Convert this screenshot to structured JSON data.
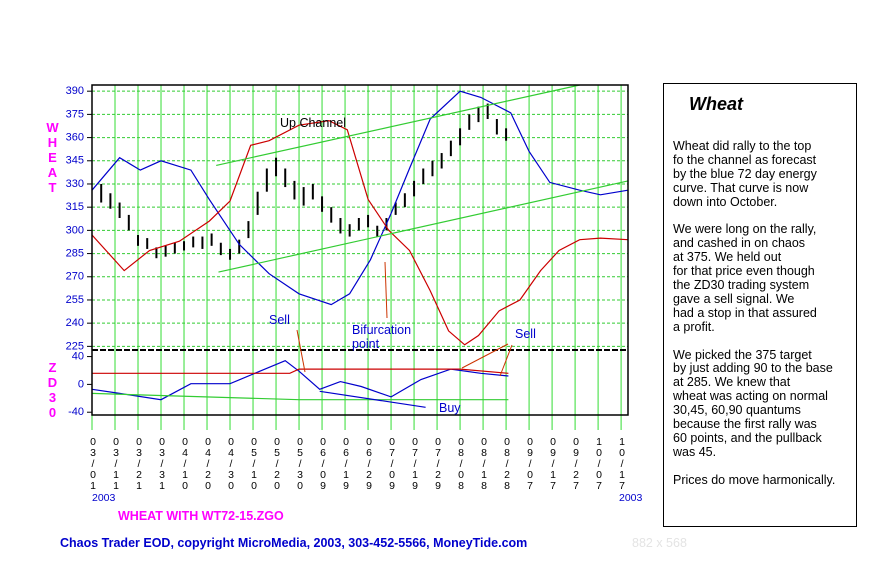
{
  "chart_data": [
    {
      "type": "combo",
      "ylabel": "WHEAT",
      "xlim": [
        "2003-03-01",
        "2003-10-20"
      ],
      "xticks": [
        {
          "value": "2003-03-01",
          "label": "03/01"
        },
        {
          "value": "2003-03-11",
          "label": "03/11"
        },
        {
          "value": "2003-03-21",
          "label": "03/21"
        },
        {
          "value": "2003-03-31",
          "label": "03/31"
        },
        {
          "value": "2003-04-10",
          "label": "04/10"
        },
        {
          "value": "2003-04-20",
          "label": "04/20"
        },
        {
          "value": "2003-04-30",
          "label": "04/30"
        },
        {
          "value": "2003-05-10",
          "label": "05/10"
        },
        {
          "value": "2003-05-20",
          "label": "05/20"
        },
        {
          "value": "2003-05-30",
          "label": "05/30"
        },
        {
          "value": "2003-06-09",
          "label": "06/09"
        },
        {
          "value": "2003-06-19",
          "label": "06/19"
        },
        {
          "value": "2003-06-29",
          "label": "06/29"
        },
        {
          "value": "2003-07-09",
          "label": "07/09"
        },
        {
          "value": "2003-07-19",
          "label": "07/19"
        },
        {
          "value": "2003-07-29",
          "label": "07/29"
        },
        {
          "value": "2003-08-08",
          "label": "08/08"
        },
        {
          "value": "2003-08-18",
          "label": "08/18"
        },
        {
          "value": "2003-08-28",
          "label": "08/28"
        },
        {
          "value": "2003-09-07",
          "label": "09/07"
        },
        {
          "value": "2003-09-17",
          "label": "09/17"
        },
        {
          "value": "2003-09-27",
          "label": "09/27"
        },
        {
          "value": "2003-10-07",
          "label": "10/07"
        },
        {
          "value": "2003-10-17",
          "label": "10/17"
        }
      ],
      "x_year_labels": [
        "2003",
        "2003"
      ],
      "ylim": [
        222,
        394
      ],
      "yticks": [
        390,
        375,
        360,
        345,
        330,
        315,
        300,
        285,
        270,
        255,
        240,
        225
      ],
      "grid": true,
      "annotations": [
        "Up Channel",
        "Sell",
        "Bifurcation point"
      ],
      "series": [
        {
          "type": "range",
          "color": "#000000",
          "x": [
            "2003-03-05",
            "2003-03-09",
            "2003-03-13",
            "2003-03-17",
            "2003-03-21",
            "2003-03-25",
            "2003-03-29",
            "2003-04-02",
            "2003-04-06",
            "2003-04-10",
            "2003-04-14",
            "2003-04-18",
            "2003-04-22",
            "2003-04-26",
            "2003-04-30",
            "2003-05-04",
            "2003-05-08",
            "2003-05-12",
            "2003-05-16",
            "2003-05-20",
            "2003-05-24",
            "2003-05-28",
            "2003-06-01",
            "2003-06-05",
            "2003-06-09",
            "2003-06-13",
            "2003-06-17",
            "2003-06-21",
            "2003-06-25",
            "2003-06-29",
            "2003-07-03",
            "2003-07-07",
            "2003-07-11",
            "2003-07-15",
            "2003-07-19",
            "2003-07-23",
            "2003-07-27",
            "2003-07-31",
            "2003-08-04",
            "2003-08-08",
            "2003-08-12",
            "2003-08-16",
            "2003-08-20",
            "2003-08-24",
            "2003-08-28"
          ],
          "high": [
            330,
            324,
            318,
            310,
            297,
            295,
            289,
            290,
            292,
            293,
            296,
            296,
            298,
            292,
            288,
            294,
            306,
            325,
            340,
            347,
            340,
            332,
            328,
            330,
            322,
            315,
            308,
            304,
            308,
            310,
            303,
            308,
            318,
            324,
            332,
            340,
            345,
            350,
            358,
            366,
            375,
            380,
            382,
            372,
            366
          ],
          "low": [
            318,
            314,
            308,
            300,
            290,
            288,
            282,
            283,
            285,
            287,
            289,
            288,
            290,
            284,
            281,
            285,
            295,
            310,
            325,
            335,
            328,
            320,
            316,
            320,
            312,
            305,
            298,
            296,
            300,
            302,
            296,
            300,
            310,
            315,
            322,
            330,
            335,
            340,
            348,
            355,
            365,
            370,
            372,
            362,
            358
          ]
        },
        {
          "type": "line",
          "color": "#0000cc",
          "x": [
            "2003-03-01",
            "2003-03-13",
            "2003-03-22",
            "2003-03-31",
            "2003-04-13",
            "2003-04-21",
            "2003-05-04",
            "2003-05-17",
            "2003-05-30",
            "2003-06-13",
            "2003-06-21",
            "2003-06-30",
            "2003-07-09",
            "2003-07-17",
            "2003-07-26",
            "2003-08-08",
            "2003-08-17",
            "2003-08-30",
            "2003-09-07",
            "2003-09-16",
            "2003-09-29",
            "2003-10-08",
            "2003-10-20"
          ],
          "values": [
            326,
            347,
            339,
            345,
            339,
            320,
            291,
            272,
            259,
            252,
            259,
            281,
            311,
            340,
            372,
            390,
            386,
            376,
            351,
            331,
            326,
            323,
            326
          ]
        },
        {
          "type": "line",
          "color": "#cc0000",
          "x": [
            "2003-03-01",
            "2003-03-15",
            "2003-03-26",
            "2003-04-08",
            "2003-04-21",
            "2003-04-30",
            "2003-05-09",
            "2003-05-17",
            "2003-05-30",
            "2003-06-12",
            "2003-06-20",
            "2003-06-29",
            "2003-07-08",
            "2003-07-17",
            "2003-07-26",
            "2003-08-03",
            "2003-08-10",
            "2003-08-16",
            "2003-08-25",
            "2003-09-03",
            "2003-09-12",
            "2003-09-20",
            "2003-09-29",
            "2003-10-08",
            "2003-10-20"
          ],
          "values": [
            297,
            274,
            287,
            293,
            306,
            319,
            355,
            358,
            368,
            371,
            365,
            320,
            300,
            287,
            261,
            235,
            226,
            232,
            248,
            255,
            274,
            287,
            294,
            295,
            294
          ]
        },
        {
          "type": "line",
          "color": "#33cc33",
          "x": [
            "2003-04-24",
            "2003-09-29"
          ],
          "values": [
            342,
            394
          ]
        },
        {
          "type": "line",
          "color": "#33cc33",
          "x": [
            "2003-04-25",
            "2003-10-20"
          ],
          "values": [
            273,
            332
          ]
        }
      ]
    },
    {
      "type": "combo",
      "ylabel": "ZD30",
      "xlim": [
        "2003-03-01",
        "2003-10-20"
      ],
      "ylim": [
        -44,
        48
      ],
      "yticks": [
        40,
        0,
        -40
      ],
      "annotations": [
        "Buy",
        "Sell"
      ],
      "series": [
        {
          "type": "line",
          "color": "#0000cc",
          "x": [
            "2003-03-01",
            "2003-03-13",
            "2003-03-31",
            "2003-04-13",
            "2003-04-30",
            "2003-05-13",
            "2003-05-24",
            "2003-05-30",
            "2003-06-08",
            "2003-06-17",
            "2003-06-26",
            "2003-07-09",
            "2003-07-22",
            "2003-08-04",
            "2003-08-17",
            "2003-08-29"
          ],
          "values": [
            -7,
            -13,
            -22,
            1,
            1,
            19,
            34,
            19,
            -7,
            4,
            -3,
            -18,
            7,
            22,
            16,
            12
          ]
        },
        {
          "type": "line",
          "color": "#cc0000",
          "x": [
            "2003-03-01",
            "2003-05-26",
            "2003-05-30",
            "2003-08-08",
            "2003-08-29"
          ],
          "values": [
            16,
            16,
            22,
            22,
            16
          ]
        },
        {
          "type": "line",
          "color": "#33cc33",
          "x": [
            "2003-03-01",
            "2003-05-30",
            "2003-08-29"
          ],
          "values": [
            -13,
            -22,
            -22
          ]
        },
        {
          "type": "line",
          "color": "#0000cc",
          "x": [
            "2003-06-08",
            "2003-07-24"
          ],
          "values": [
            -10,
            -33
          ]
        }
      ]
    }
  ],
  "caption": "WHEAT WITH WT72-15.ZGO",
  "footer": "Chaos Trader EOD, copyright MicroMedia, 2003, 303-452-5566, MoneyTide.com",
  "size_note": "882 x 568",
  "side_panel": {
    "title": "Wheat",
    "paragraphs": [
      [
        "Wheat did rally to the top",
        "fo the channel as forecast",
        "by the blue 72 day energy",
        "curve. That curve is now",
        "down into October."
      ],
      [
        "We were long on the rally,",
        "and cashed in on chaos",
        "at 375. We held out",
        "for that price even though",
        "the ZD30 trading system",
        "gave a sell signal. We",
        "had a stop in that assured",
        "a profit."
      ],
      [
        "We picked the 375 target",
        "by just adding 90 to the base",
        "at 285. We knew that",
        "wheat was acting on normal",
        "30,45, 60,90 quantums",
        "because the first rally was",
        "60 points, and the pullback",
        "was 45."
      ],
      [
        "Prices do move harmonically."
      ]
    ]
  }
}
